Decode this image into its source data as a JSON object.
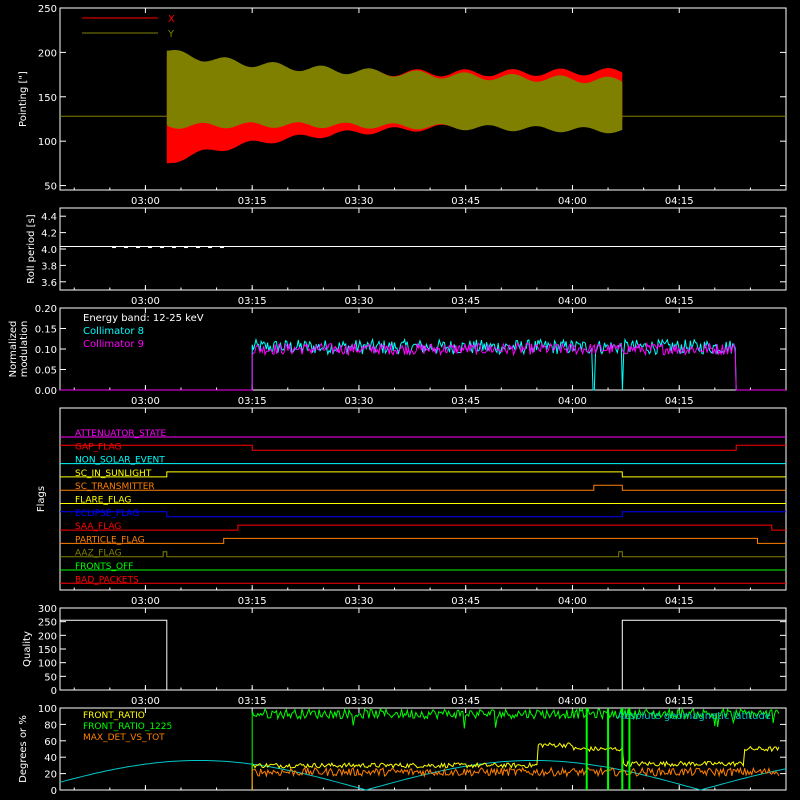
{
  "colors": {
    "background": "#000000",
    "axes": "#ffffff",
    "x_series": "#ff0000",
    "y_series": "#808000",
    "roll": "#ffffff",
    "collimator8": "#00ffff",
    "collimator9": "#ff00ff",
    "quality": "#ffffff",
    "front_ratio": "#ffff00",
    "front_ratio_1225": "#00ff00",
    "max_det": "#ff8000",
    "altitude": "#00c8c8"
  },
  "time_axis": {
    "start": "02:48",
    "end": "04:30",
    "ticks": [
      "03:00",
      "03:15",
      "03:30",
      "03:45",
      "04:00",
      "04:15"
    ]
  },
  "panels": {
    "pointing": {
      "ylabel": "Pointing [\"]",
      "yticks": [
        "50",
        "100",
        "150",
        "200",
        "250"
      ],
      "legend": [
        "X",
        "Y"
      ]
    },
    "roll": {
      "ylabel": "Roll period [s]",
      "yticks": [
        "3.6",
        "3.8",
        "4.0",
        "4.2",
        "4.4"
      ]
    },
    "modulation": {
      "ylabel_line1": "Normalized",
      "ylabel_line2": "modulation",
      "yticks": [
        "0.00",
        "0.05",
        "0.10",
        "0.15",
        "0.20"
      ],
      "annotation": "Energy band: 12-25 keV",
      "legend": [
        "Collimator 8",
        "Collimator 9"
      ]
    },
    "flags": {
      "ylabel": "Flags",
      "items": [
        {
          "label": "ATTENUATOR_STATE",
          "color": "#ff00ff"
        },
        {
          "label": "GAP_FLAG",
          "color": "#ff0000"
        },
        {
          "label": "NON_SOLAR_EVENT",
          "color": "#00ffff"
        },
        {
          "label": "SC_IN_SUNLIGHT",
          "color": "#ffff00"
        },
        {
          "label": "SC_TRANSMITTER",
          "color": "#ff8000"
        },
        {
          "label": "FLARE_FLAG",
          "color": "#ffff00"
        },
        {
          "label": "ECLIPSE_FLAG",
          "color": "#0000ff"
        },
        {
          "label": "SAA_FLAG",
          "color": "#ff0000"
        },
        {
          "label": "PARTICLE_FLAG",
          "color": "#ff8000"
        },
        {
          "label": "AAZ_FLAG",
          "color": "#808000"
        },
        {
          "label": "FRONTS_OFF",
          "color": "#00ff00"
        },
        {
          "label": "BAD_PACKETS",
          "color": "#ff0000"
        }
      ]
    },
    "quality": {
      "ylabel": "Quality",
      "yticks": [
        "0",
        "50",
        "100",
        "150",
        "200",
        "250",
        "300"
      ]
    },
    "ratio": {
      "ylabel": "Degrees or %",
      "yticks": [
        "0",
        "20",
        "40",
        "60",
        "80",
        "100"
      ],
      "legend": [
        "FRONT_RATIO",
        "FRONT_RATIO_1225",
        "MAX_DET_VS_TOT"
      ],
      "annotation": "Absolute geomagnetic latitude"
    }
  },
  "chart_data": [
    {
      "type": "line",
      "ylabel": "Pointing [\"]",
      "ylim": [
        45,
        250
      ],
      "baseline_value": 128,
      "active_range": [
        "03:03",
        "04:07"
      ],
      "series": [
        {
          "name": "X",
          "center_start": 135,
          "center_end": 150,
          "amp_start": 60,
          "amp_end": 28
        },
        {
          "name": "Y",
          "center_start": 160,
          "center_end": 140,
          "amp_start": 42,
          "amp_end": 28
        }
      ]
    },
    {
      "type": "line",
      "ylabel": "Roll period [s]",
      "ylim": [
        3.5,
        4.5
      ],
      "values": [
        4.03,
        4.03
      ]
    },
    {
      "type": "line",
      "ylim": [
        0,
        0.2
      ],
      "active_range": [
        "03:15",
        "04:23"
      ],
      "series": [
        {
          "name": "Collimator 8",
          "mean": 0.105,
          "spread": 0.018,
          "gaps": [
            [
              "04:03",
              "04:07"
            ]
          ]
        },
        {
          "name": "Collimator 9",
          "mean": 0.1,
          "spread": 0.014
        }
      ]
    },
    {
      "type": "line",
      "ylabel": "Flags",
      "series": [
        {
          "name": "ATTENUATOR_STATE",
          "steps": [
            [
              "02:48",
              0
            ],
            [
              "04:30",
              0
            ]
          ]
        },
        {
          "name": "GAP_FLAG",
          "steps": [
            [
              "02:48",
              1
            ],
            [
              "03:15",
              0
            ],
            [
              "04:23",
              1
            ]
          ]
        },
        {
          "name": "NON_SOLAR_EVENT",
          "steps": [
            [
              "02:48",
              0
            ],
            [
              "04:30",
              0
            ]
          ]
        },
        {
          "name": "SC_IN_SUNLIGHT",
          "steps": [
            [
              "02:48",
              0
            ],
            [
              "03:03",
              1
            ],
            [
              "04:07",
              0
            ]
          ]
        },
        {
          "name": "SC_TRANSMITTER",
          "steps": [
            [
              "02:48",
              0
            ],
            [
              "04:03",
              1
            ],
            [
              "04:07",
              0
            ]
          ]
        },
        {
          "name": "FLARE_FLAG",
          "steps": [
            [
              "02:48",
              0
            ],
            [
              "04:30",
              0
            ]
          ]
        },
        {
          "name": "ECLIPSE_FLAG",
          "steps": [
            [
              "02:48",
              1
            ],
            [
              "03:03",
              0
            ],
            [
              "04:07",
              1
            ]
          ]
        },
        {
          "name": "SAA_FLAG",
          "steps": [
            [
              "02:48",
              0
            ],
            [
              "03:13",
              1
            ],
            [
              "04:28",
              0
            ]
          ]
        },
        {
          "name": "PARTICLE_FLAG",
          "steps": [
            [
              "02:48",
              0
            ],
            [
              "03:11",
              1
            ],
            [
              "04:26",
              0
            ]
          ]
        },
        {
          "name": "AAZ_FLAG",
          "steps": [
            [
              "02:48",
              0
            ],
            [
              "03:02.5",
              1
            ],
            [
              "03:03",
              0
            ],
            [
              "04:06.5",
              1
            ],
            [
              "04:07",
              0
            ]
          ]
        },
        {
          "name": "FRONTS_OFF",
          "steps": [
            [
              "02:48",
              0
            ],
            [
              "04:30",
              0
            ]
          ]
        },
        {
          "name": "BAD_PACKETS",
          "steps": [
            [
              "02:48",
              0
            ],
            [
              "04:30",
              0
            ]
          ]
        }
      ]
    },
    {
      "type": "line",
      "ylabel": "Quality",
      "ylim": [
        0,
        300
      ],
      "steps": [
        [
          "02:48",
          255
        ],
        [
          "03:03",
          0
        ],
        [
          "04:07",
          255
        ]
      ]
    },
    {
      "type": "line",
      "ylabel": "Degrees or %",
      "ylim": [
        0,
        100
      ],
      "series": [
        {
          "name": "FRONT_RATIO",
          "start": "03:15",
          "mean": 30,
          "spread": 3,
          "steps": [
            [
              "03:55",
              55
            ],
            [
              "04:00",
              50
            ],
            [
              "04:07",
              32
            ],
            [
              "04:20",
              32
            ],
            [
              "04:24",
              50
            ]
          ]
        },
        {
          "name": "FRONT_RATIO_1225",
          "start": "03:15",
          "mean": 93,
          "spread": 6
        },
        {
          "name": "MAX_DET_VS_TOT",
          "start": "03:15",
          "mean": 22,
          "spread": 5
        },
        {
          "name": "Absolute geomagnetic latitude",
          "amplitude": 36,
          "period_minutes": 47
        }
      ]
    }
  ]
}
